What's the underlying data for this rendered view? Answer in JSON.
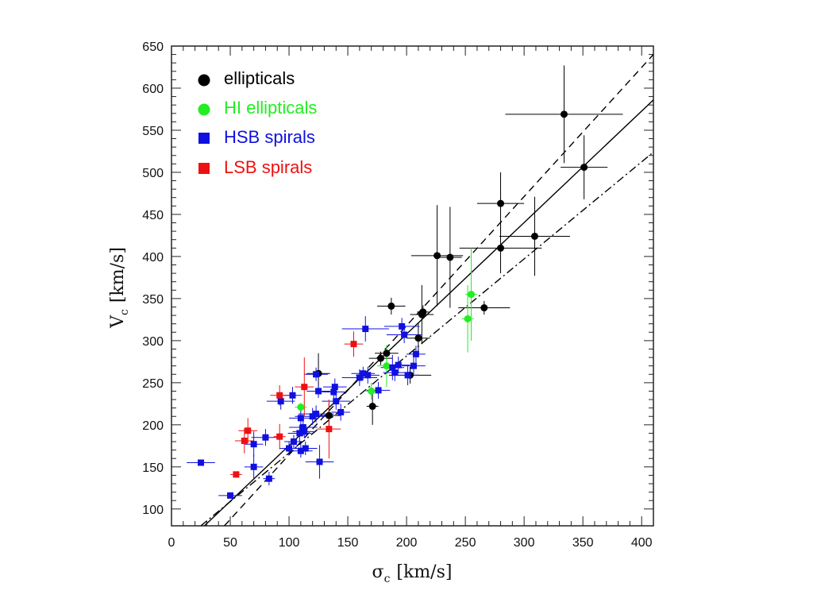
{
  "chart_data": {
    "type": "scatter",
    "title": "",
    "xlabel": {
      "symbol": "σ",
      "subscript": "c",
      "unit": "[km/s]"
    },
    "ylabel": {
      "symbol": "V",
      "subscript": "c",
      "unit": "[km/s]"
    },
    "xlim": [
      0,
      410
    ],
    "ylim": [
      80,
      650
    ],
    "x_ticks": [
      0,
      50,
      100,
      150,
      200,
      250,
      300,
      350,
      400
    ],
    "y_ticks": [
      100,
      150,
      200,
      250,
      300,
      350,
      400,
      450,
      500,
      550,
      600,
      650
    ],
    "grid": false,
    "legend_position": "top-left",
    "series": [
      {
        "name": "ellipticals",
        "color": "#000000",
        "marker": "circle",
        "points": [
          {
            "x": 125,
            "y": 261,
            "xerr": 10,
            "yerr": 24
          },
          {
            "x": 134,
            "y": 211,
            "xerr": 10,
            "yerr": 15
          },
          {
            "x": 171,
            "y": 222,
            "xerr": 5,
            "yerr": 22
          },
          {
            "x": 178,
            "y": 279,
            "xerr": 10,
            "yerr": 8
          },
          {
            "x": 183,
            "y": 285,
            "xerr": 10,
            "yerr": 8
          },
          {
            "x": 187,
            "y": 341,
            "xerr": 12,
            "yerr": 10
          },
          {
            "x": 203,
            "y": 259,
            "xerr": 18,
            "yerr": 10
          },
          {
            "x": 210,
            "y": 303,
            "xerr": 10,
            "yerr": 18
          },
          {
            "x": 213,
            "y": 331,
            "xerr": 10,
            "yerr": 35
          },
          {
            "x": 214,
            "y": 334,
            "xerr": 5,
            "yerr": 8
          },
          {
            "x": 226,
            "y": 401,
            "xerr": 22,
            "yerr": 60
          },
          {
            "x": 237,
            "y": 399,
            "xerr": 10,
            "yerr": 60
          },
          {
            "x": 266,
            "y": 339,
            "xerr": 22,
            "yerr": 8
          },
          {
            "x": 280,
            "y": 463,
            "xerr": 20,
            "yerr": 37
          },
          {
            "x": 280,
            "y": 410,
            "xerr": 35,
            "yerr": 30
          },
          {
            "x": 309,
            "y": 424,
            "xerr": 30,
            "yerr": 47
          },
          {
            "x": 334,
            "y": 569,
            "xerr": 50,
            "yerr": 58
          },
          {
            "x": 351,
            "y": 506,
            "xerr": 20,
            "yerr": 38
          }
        ]
      },
      {
        "name": "HI ellipticals",
        "color": "#22ee22",
        "marker": "circle",
        "points": [
          {
            "x": 110,
            "y": 221,
            "xerr": 5,
            "yerr": 5
          },
          {
            "x": 170,
            "y": 240,
            "xerr": 5,
            "yerr": 10
          },
          {
            "x": 183,
            "y": 270,
            "xerr": 8,
            "yerr": 25
          },
          {
            "x": 252,
            "y": 326,
            "xerr": 5,
            "yerr": 40
          },
          {
            "x": 255,
            "y": 355,
            "xerr": 5,
            "yerr": 55
          }
        ]
      },
      {
        "name": "HSB spirals",
        "color": "#1010e0",
        "marker": "square",
        "points": [
          {
            "x": 25,
            "y": 155,
            "xerr": 12,
            "yerr": 3
          },
          {
            "x": 50,
            "y": 116,
            "xerr": 10,
            "yerr": 3
          },
          {
            "x": 70,
            "y": 177,
            "xerr": 8,
            "yerr": 15
          },
          {
            "x": 70,
            "y": 150,
            "xerr": 8,
            "yerr": 15
          },
          {
            "x": 80,
            "y": 185,
            "xerr": 12,
            "yerr": 10
          },
          {
            "x": 83,
            "y": 136,
            "xerr": 5,
            "yerr": 8
          },
          {
            "x": 93,
            "y": 228,
            "xerr": 12,
            "yerr": 10
          },
          {
            "x": 100,
            "y": 172,
            "xerr": 8,
            "yerr": 8
          },
          {
            "x": 103,
            "y": 235,
            "xerr": 8,
            "yerr": 10
          },
          {
            "x": 104,
            "y": 180,
            "xerr": 8,
            "yerr": 8
          },
          {
            "x": 109,
            "y": 190,
            "xerr": 10,
            "yerr": 10
          },
          {
            "x": 110,
            "y": 208,
            "xerr": 10,
            "yerr": 12
          },
          {
            "x": 110,
            "y": 169,
            "xerr": 10,
            "yerr": 8
          },
          {
            "x": 112,
            "y": 197,
            "xerr": 12,
            "yerr": 10
          },
          {
            "x": 113,
            "y": 192,
            "xerr": 10,
            "yerr": 8
          },
          {
            "x": 114,
            "y": 172,
            "xerr": 10,
            "yerr": 8
          },
          {
            "x": 120,
            "y": 210,
            "xerr": 15,
            "yerr": 10
          },
          {
            "x": 123,
            "y": 213,
            "xerr": 15,
            "yerr": 10
          },
          {
            "x": 123,
            "y": 260,
            "xerr": 10,
            "yerr": 8
          },
          {
            "x": 125,
            "y": 240,
            "xerr": 10,
            "yerr": 8
          },
          {
            "x": 126,
            "y": 156,
            "xerr": 12,
            "yerr": 20
          },
          {
            "x": 138,
            "y": 239,
            "xerr": 10,
            "yerr": 8
          },
          {
            "x": 139,
            "y": 245,
            "xerr": 10,
            "yerr": 10
          },
          {
            "x": 140,
            "y": 228,
            "xerr": 12,
            "yerr": 10
          },
          {
            "x": 144,
            "y": 215,
            "xerr": 8,
            "yerr": 10
          },
          {
            "x": 160,
            "y": 256,
            "xerr": 15,
            "yerr": 10
          },
          {
            "x": 163,
            "y": 261,
            "xerr": 10,
            "yerr": 8
          },
          {
            "x": 165,
            "y": 314,
            "xerr": 20,
            "yerr": 15
          },
          {
            "x": 167,
            "y": 259,
            "xerr": 10,
            "yerr": 10
          },
          {
            "x": 176,
            "y": 241,
            "xerr": 10,
            "yerr": 10
          },
          {
            "x": 188,
            "y": 268,
            "xerr": 10,
            "yerr": 15
          },
          {
            "x": 190,
            "y": 262,
            "xerr": 10,
            "yerr": 10
          },
          {
            "x": 193,
            "y": 271,
            "xerr": 10,
            "yerr": 10
          },
          {
            "x": 196,
            "y": 317,
            "xerr": 15,
            "yerr": 10
          },
          {
            "x": 198,
            "y": 307,
            "xerr": 15,
            "yerr": 10
          },
          {
            "x": 201,
            "y": 259,
            "xerr": 10,
            "yerr": 12
          },
          {
            "x": 206,
            "y": 270,
            "xerr": 10,
            "yerr": 10
          },
          {
            "x": 208,
            "y": 284,
            "xerr": 8,
            "yerr": 10
          }
        ]
      },
      {
        "name": "LSB spirals",
        "color": "#ee1111",
        "marker": "square",
        "points": [
          {
            "x": 55,
            "y": 141,
            "xerr": 5,
            "yerr": 3
          },
          {
            "x": 62,
            "y": 181,
            "xerr": 8,
            "yerr": 15
          },
          {
            "x": 65,
            "y": 193,
            "xerr": 8,
            "yerr": 15
          },
          {
            "x": 92,
            "y": 235,
            "xerr": 8,
            "yerr": 12
          },
          {
            "x": 92,
            "y": 186,
            "xerr": 5,
            "yerr": 15
          },
          {
            "x": 113,
            "y": 245,
            "xerr": 8,
            "yerr": 35
          },
          {
            "x": 134,
            "y": 195,
            "xerr": 10,
            "yerr": 35
          },
          {
            "x": 155,
            "y": 296,
            "xerr": 8,
            "yerr": 15
          }
        ]
      }
    ],
    "fit_lines": [
      {
        "style": "dashed",
        "color": "#000000",
        "x1": 45,
        "y1": 80,
        "x2": 410,
        "y2": 640
      },
      {
        "style": "solid",
        "color": "#000000",
        "x1": 28,
        "y1": 80,
        "x2": 410,
        "y2": 586
      },
      {
        "style": "dash-dot",
        "color": "#000000",
        "x1": 25,
        "y1": 80,
        "x2": 410,
        "y2": 524
      }
    ]
  }
}
